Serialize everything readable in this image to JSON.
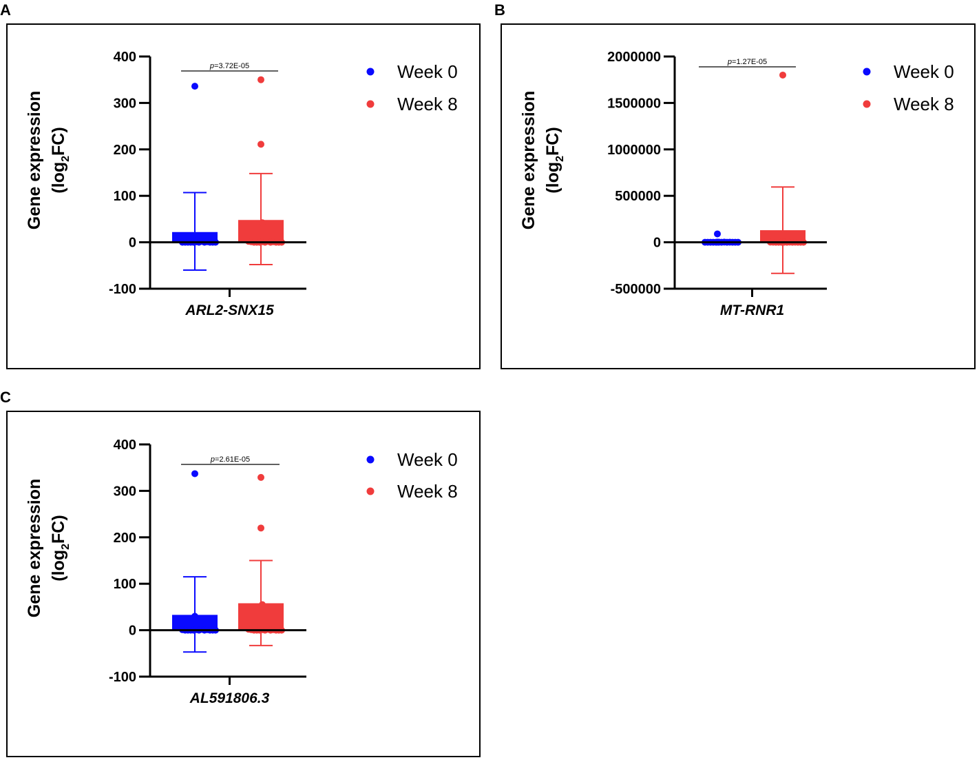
{
  "figure": {
    "colors": {
      "week0": "#0a0aff",
      "week8": "#f03c3c",
      "axis": "#000000"
    }
  },
  "chart_data": [
    {
      "panel": "A",
      "type": "bar",
      "ylabel": "Gene expression",
      "ylabel_line2": "(log",
      "ylabel_sub": "2",
      "ylabel_line2_end": "FC)",
      "xlabel": "ARL2-SNX15",
      "ylim": [
        -100,
        400
      ],
      "yticks": [
        -100,
        0,
        100,
        200,
        300,
        400
      ],
      "ytick_labels": [
        "-100",
        "0",
        "100",
        "200",
        "300",
        "400"
      ],
      "pvalue_prefix": "p",
      "pvalue_text": "=3.72E-05",
      "legend": [
        "Week 0",
        "Week 8"
      ],
      "series": [
        {
          "name": "Week 0",
          "mean": 22,
          "err_high": 107,
          "err_low": -60,
          "points": [
            336,
            2,
            1,
            0,
            0,
            0,
            0,
            0,
            1,
            0,
            2,
            0,
            1,
            0,
            0,
            0
          ]
        },
        {
          "name": "Week 8",
          "mean": 48,
          "err_high": 148,
          "err_low": -48,
          "points": [
            350,
            211,
            42,
            2,
            1,
            0,
            0,
            0,
            1,
            0,
            2,
            0,
            1,
            0,
            0,
            0
          ]
        }
      ]
    },
    {
      "panel": "B",
      "type": "bar",
      "ylabel": "Gene expression",
      "ylabel_line2": "(log",
      "ylabel_sub": "2",
      "ylabel_line2_end": "FC)",
      "xlabel": "MT-RNR1",
      "ylim": [
        -500000,
        2000000
      ],
      "yticks": [
        -500000,
        0,
        500000,
        1000000,
        1500000,
        2000000
      ],
      "ytick_labels": [
        "-500000",
        "0",
        "500000",
        "1000000",
        "1500000",
        "2000000"
      ],
      "pvalue_prefix": "p",
      "pvalue_text": "=1.27E-05",
      "legend": [
        "Week 0",
        "Week 8"
      ],
      "series": [
        {
          "name": "Week 0",
          "mean": 5000,
          "err_high": 12000,
          "err_low": -2000,
          "points": [
            90000,
            2000,
            1000,
            0,
            0,
            0,
            0,
            0,
            1000,
            0,
            2000,
            0,
            1000,
            0,
            0,
            0
          ]
        },
        {
          "name": "Week 8",
          "mean": 130000,
          "err_high": 595000,
          "err_low": -335000,
          "points": [
            1800000,
            8000,
            3000,
            2000,
            1000,
            0,
            0,
            0,
            1000,
            0,
            2000,
            0,
            1000,
            0,
            0,
            0
          ]
        }
      ]
    },
    {
      "panel": "C",
      "type": "bar",
      "ylabel": "Gene expression",
      "ylabel_line2": "(log",
      "ylabel_sub": "2",
      "ylabel_line2_end": "FC)",
      "xlabel": "AL591806.3",
      "ylim": [
        -100,
        400
      ],
      "yticks": [
        -100,
        0,
        100,
        200,
        300,
        400
      ],
      "ytick_labels": [
        "-100",
        "0",
        "100",
        "200",
        "300",
        "400"
      ],
      "pvalue_prefix": "p",
      "pvalue_text": "=2.61E-05",
      "legend": [
        "Week 0",
        "Week 8"
      ],
      "series": [
        {
          "name": "Week 0",
          "mean": 33,
          "err_high": 115,
          "err_low": -47,
          "points": [
            337,
            30,
            2,
            1,
            0,
            0,
            0,
            0,
            1,
            0,
            2,
            0,
            1,
            0,
            0,
            0
          ]
        },
        {
          "name": "Week 8",
          "mean": 58,
          "err_high": 150,
          "err_low": -33,
          "points": [
            329,
            220,
            55,
            2,
            1,
            0,
            0,
            0,
            1,
            0,
            2,
            0,
            1,
            0,
            0,
            0
          ]
        }
      ]
    }
  ]
}
